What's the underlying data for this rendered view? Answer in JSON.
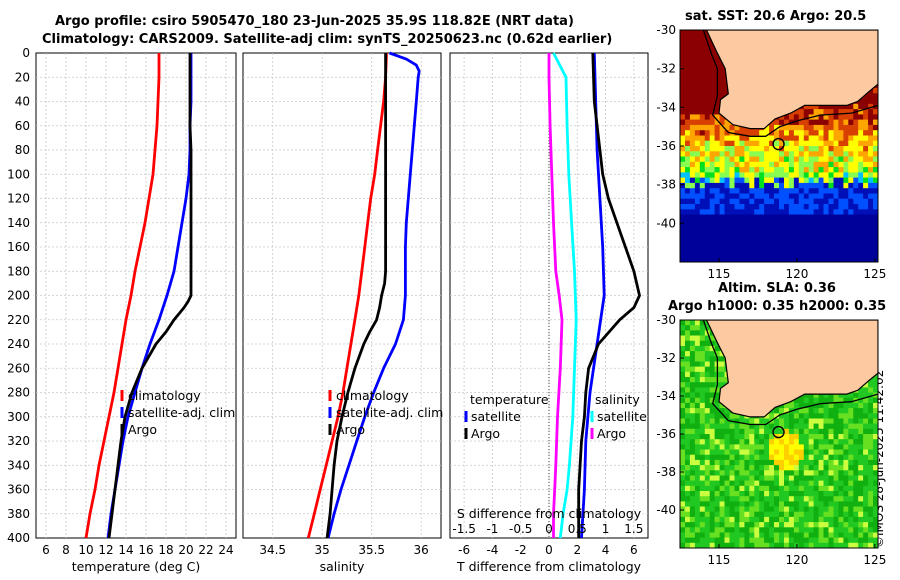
{
  "figure": {
    "title_line1": "Argo profile: csiro 5905470_180 23-Jun-2025 35.9S 118.82E (NRT data)",
    "title_line2": "Climatology: CARS2009. Satellite-adj clim: synTS_20250623.nc (0.62d earlier)",
    "copyright": "©IMOS 28-Jun-2025 11:42:02"
  },
  "colors": {
    "climatology": "#ff0000",
    "satellite": "#0000ff",
    "argo": "#000000",
    "temp_diff": "#ff00ff",
    "sal_diff": "#00ffff",
    "grid": "#c8c8c8"
  },
  "chart_data": [
    {
      "type": "line",
      "id": "temperature",
      "xlabel": "temperature (deg C)",
      "ylabel": "",
      "xlim": [
        5,
        25
      ],
      "ylim": [
        400,
        0
      ],
      "xticks": [
        "6",
        "8",
        "10",
        "12",
        "14",
        "16",
        "18",
        "20",
        "22",
        "24"
      ],
      "yticks": [
        "0",
        "20",
        "40",
        "60",
        "80",
        "100",
        "120",
        "140",
        "160",
        "180",
        "200",
        "220",
        "240",
        "260",
        "280",
        "300",
        "320",
        "340",
        "360",
        "380",
        "400"
      ],
      "legend": [
        "climatology",
        "satellite-adj. clim",
        "Argo"
      ],
      "series": [
        {
          "name": "climatology",
          "color": "#ff0000",
          "depth": [
            0,
            20,
            40,
            60,
            80,
            100,
            120,
            140,
            160,
            180,
            200,
            220,
            240,
            260,
            280,
            300,
            320,
            340,
            360,
            380,
            400
          ],
          "values": [
            17.3,
            17.3,
            17.2,
            17.1,
            16.9,
            16.7,
            16.3,
            15.9,
            15.4,
            14.9,
            14.5,
            14.0,
            13.6,
            13.2,
            12.8,
            12.3,
            11.8,
            11.3,
            10.9,
            10.4,
            10.0
          ]
        },
        {
          "name": "satellite-adj. clim",
          "color": "#0000ff",
          "depth": [
            0,
            20,
            40,
            60,
            80,
            100,
            120,
            140,
            160,
            180,
            200,
            220,
            240,
            260,
            280,
            300,
            320,
            340,
            360,
            380,
            400
          ],
          "values": [
            20.5,
            20.5,
            20.5,
            20.4,
            20.4,
            20.3,
            20.0,
            19.6,
            19.2,
            18.8,
            18.1,
            17.3,
            16.4,
            15.6,
            14.9,
            14.2,
            13.7,
            13.3,
            12.9,
            12.5,
            12.2
          ]
        },
        {
          "name": "Argo",
          "color": "#000000",
          "depth": [
            0,
            20,
            40,
            60,
            80,
            100,
            120,
            140,
            160,
            180,
            200,
            205,
            210,
            215,
            220,
            230,
            240,
            260,
            280,
            300,
            320,
            340,
            360,
            380,
            400
          ],
          "values": [
            20.4,
            20.4,
            20.4,
            20.4,
            20.5,
            20.5,
            20.5,
            20.5,
            20.5,
            20.5,
            20.5,
            20.2,
            19.8,
            19.3,
            18.8,
            18.0,
            17.0,
            15.6,
            14.6,
            13.9,
            13.5,
            13.2,
            12.9,
            12.6,
            12.3
          ]
        }
      ]
    },
    {
      "type": "line",
      "id": "salinity",
      "xlabel": "salinity",
      "ylabel": "",
      "xlim": [
        34.2,
        36.2
      ],
      "ylim": [
        400,
        0
      ],
      "xticks": [
        "34.5",
        "35",
        "35.5",
        "36"
      ],
      "legend": [
        "climatology",
        "satellite-adj. clim",
        "Argo"
      ],
      "series": [
        {
          "name": "climatology",
          "color": "#ff0000",
          "depth": [
            0,
            20,
            40,
            60,
            80,
            100,
            120,
            140,
            160,
            180,
            200,
            220,
            240,
            260,
            280,
            300,
            320,
            340,
            360,
            380,
            400
          ],
          "values": [
            35.65,
            35.64,
            35.62,
            35.59,
            35.56,
            35.53,
            35.49,
            35.46,
            35.43,
            35.4,
            35.37,
            35.33,
            35.29,
            35.25,
            35.21,
            35.16,
            35.1,
            35.04,
            34.98,
            34.92,
            34.86
          ]
        },
        {
          "name": "satellite-adj. clim",
          "color": "#0000ff",
          "depth": [
            0,
            5,
            10,
            15,
            20,
            40,
            60,
            80,
            100,
            120,
            140,
            160,
            180,
            200,
            220,
            240,
            260,
            280,
            300,
            320,
            340,
            360,
            380,
            400
          ],
          "values": [
            35.68,
            35.85,
            35.95,
            35.98,
            35.97,
            35.95,
            35.93,
            35.91,
            35.89,
            35.87,
            35.85,
            35.84,
            35.84,
            35.84,
            35.82,
            35.74,
            35.62,
            35.52,
            35.43,
            35.35,
            35.27,
            35.19,
            35.12,
            35.06
          ]
        },
        {
          "name": "Argo",
          "color": "#000000",
          "depth": [
            0,
            20,
            40,
            60,
            80,
            100,
            120,
            140,
            160,
            180,
            190,
            200,
            210,
            220,
            230,
            240,
            260,
            280,
            300,
            320,
            340,
            360,
            380,
            400
          ],
          "values": [
            35.64,
            35.64,
            35.64,
            35.64,
            35.64,
            35.64,
            35.64,
            35.64,
            35.64,
            35.64,
            35.63,
            35.6,
            35.58,
            35.55,
            35.48,
            35.42,
            35.33,
            35.26,
            35.2,
            35.15,
            35.12,
            35.1,
            35.08,
            35.05
          ]
        }
      ]
    },
    {
      "type": "line",
      "id": "difference",
      "xlabel": "T difference from climatology",
      "ylabel": "",
      "xlim": [
        -7,
        7
      ],
      "ylim": [
        400,
        0
      ],
      "xticks": [
        "-6",
        "-4",
        "-2",
        "0",
        "2",
        "4",
        "6"
      ],
      "top_label": "S difference from climatology",
      "top_ticks": [
        "-1.5",
        "-1",
        "-0.5",
        "0",
        "0.5",
        "1",
        "1.5"
      ],
      "legend_left_title": "temperature",
      "legend_right_title": "salinity",
      "legend_left": [
        "satellite",
        "Argo"
      ],
      "legend_right": [
        "satellite",
        "Argo"
      ],
      "series": [
        {
          "name": "T satellite",
          "color": "#0000ff",
          "depth": [
            0,
            40,
            80,
            120,
            160,
            200,
            240,
            280,
            320,
            360,
            400
          ],
          "values": [
            3.2,
            3.3,
            3.4,
            3.6,
            3.8,
            3.9,
            3.4,
            2.9,
            2.6,
            2.5,
            2.3
          ]
        },
        {
          "name": "T Argo",
          "color": "#000000",
          "depth": [
            0,
            40,
            80,
            100,
            120,
            140,
            160,
            180,
            200,
            210,
            220,
            240,
            260,
            280,
            300,
            320,
            340,
            360,
            380,
            400
          ],
          "values": [
            3.1,
            3.2,
            3.6,
            3.8,
            4.2,
            4.8,
            5.4,
            6.0,
            6.4,
            6.0,
            5.0,
            3.5,
            2.8,
            2.6,
            2.5,
            2.3,
            2.2,
            2.1,
            2.1,
            2.1
          ]
        },
        {
          "name": "S satellite",
          "color": "#00ffff",
          "depth": [
            0,
            20,
            60,
            100,
            140,
            180,
            220,
            260,
            300,
            340,
            360,
            380,
            400
          ],
          "values": [
            0.08,
            0.3,
            0.32,
            0.35,
            0.4,
            0.45,
            0.48,
            0.45,
            0.42,
            0.36,
            0.32,
            0.25,
            0.2
          ]
        },
        {
          "name": "S Argo",
          "color": "#ff00ff",
          "depth": [
            0,
            20,
            60,
            100,
            140,
            180,
            200,
            220,
            260,
            300,
            340,
            360,
            380,
            400
          ],
          "values": [
            0.0,
            0.0,
            0.02,
            0.05,
            0.08,
            0.12,
            0.18,
            0.23,
            0.2,
            0.15,
            0.12,
            0.1,
            0.08,
            0.08
          ]
        }
      ]
    },
    {
      "type": "heatmap",
      "id": "sst_map",
      "title": "sat. SST: 20.6 Argo: 20.5",
      "xlim": [
        112.5,
        125.2
      ],
      "ylim": [
        -42,
        -30
      ],
      "xticks": [
        "115",
        "120",
        "125"
      ],
      "yticks": [
        "-30",
        "-32",
        "-34",
        "-36",
        "-38",
        "-40"
      ],
      "marker": {
        "lon": 118.82,
        "lat": -35.9
      }
    },
    {
      "type": "heatmap",
      "id": "sla_map",
      "title_line1": "Altim. SLA: 0.36",
      "title_line2": "Argo h1000: 0.35 h2000: 0.35",
      "xlim": [
        112.5,
        125.2
      ],
      "ylim": [
        -42,
        -30
      ],
      "xticks": [
        "115",
        "120",
        "125"
      ],
      "yticks": [
        "-30",
        "-32",
        "-34",
        "-36",
        "-38",
        "-40"
      ],
      "marker": {
        "lon": 118.82,
        "lat": -35.9
      }
    }
  ]
}
